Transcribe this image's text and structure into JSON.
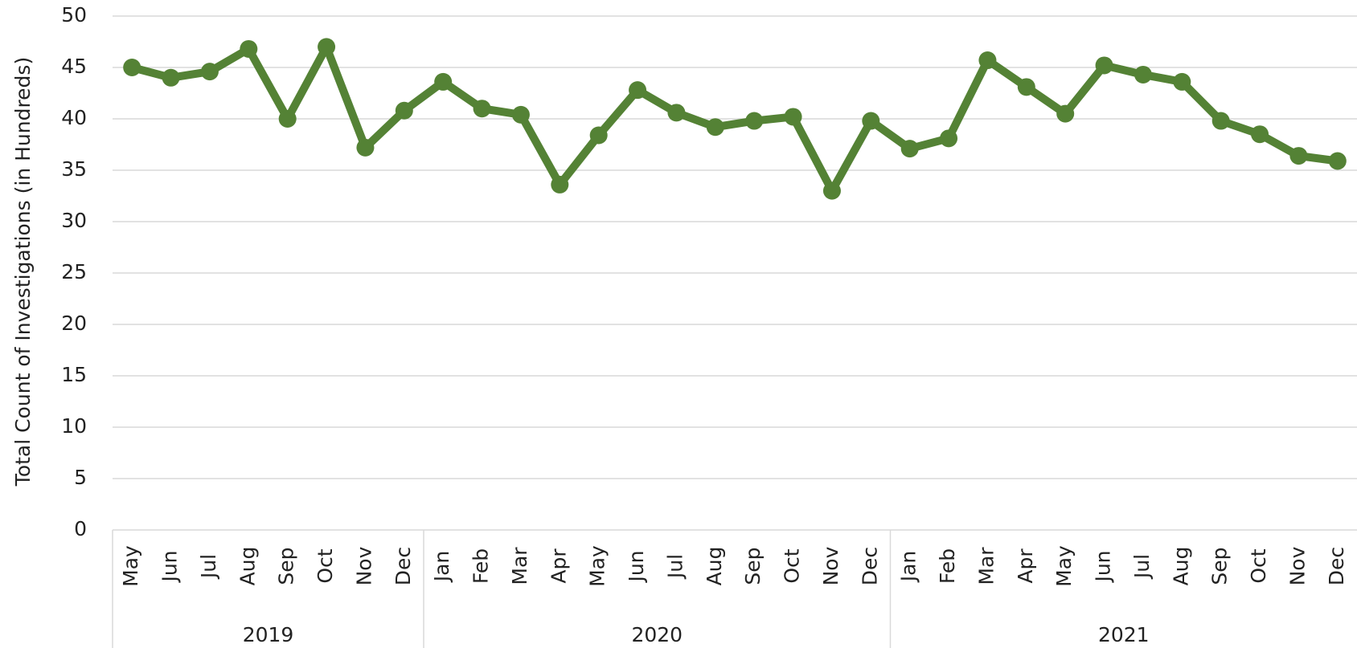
{
  "chart_data": {
    "type": "line",
    "y_axis_label": "Total Count of Investigations (in Hundreds)",
    "groups": [
      {
        "label": "2019",
        "categories": [
          "May",
          "Jun",
          "Jul",
          "Aug",
          "Sep",
          "Oct",
          "Nov",
          "Dec"
        ]
      },
      {
        "label": "2020",
        "categories": [
          "Jan",
          "Feb",
          "Mar",
          "Apr",
          "May",
          "Jun",
          "Jul",
          "Aug",
          "Sep",
          "Oct",
          "Nov",
          "Dec"
        ]
      },
      {
        "label": "2021",
        "categories": [
          "Jan",
          "Feb",
          "Mar",
          "Apr",
          "May",
          "Jun",
          "Jul",
          "Aug",
          "Sep",
          "Oct",
          "Nov",
          "Dec"
        ]
      }
    ],
    "series": [
      {
        "color": "#548235",
        "values": [
          45,
          44,
          44.6,
          46.8,
          40,
          47,
          37.2,
          40.8,
          43.6,
          41,
          40.4,
          33.6,
          38.4,
          42.8,
          40.6,
          39.2,
          39.8,
          40.2,
          33,
          39.8,
          37.1,
          38.1,
          45.7,
          43.1,
          40.5,
          45.2,
          44.3,
          43.6,
          39.8,
          38.5,
          36.4,
          35.9
        ]
      }
    ],
    "ylim": [
      0,
      50
    ],
    "yticks": [
      0,
      5,
      10,
      15,
      20,
      25,
      30,
      35,
      40,
      45,
      50
    ],
    "grid": true
  }
}
